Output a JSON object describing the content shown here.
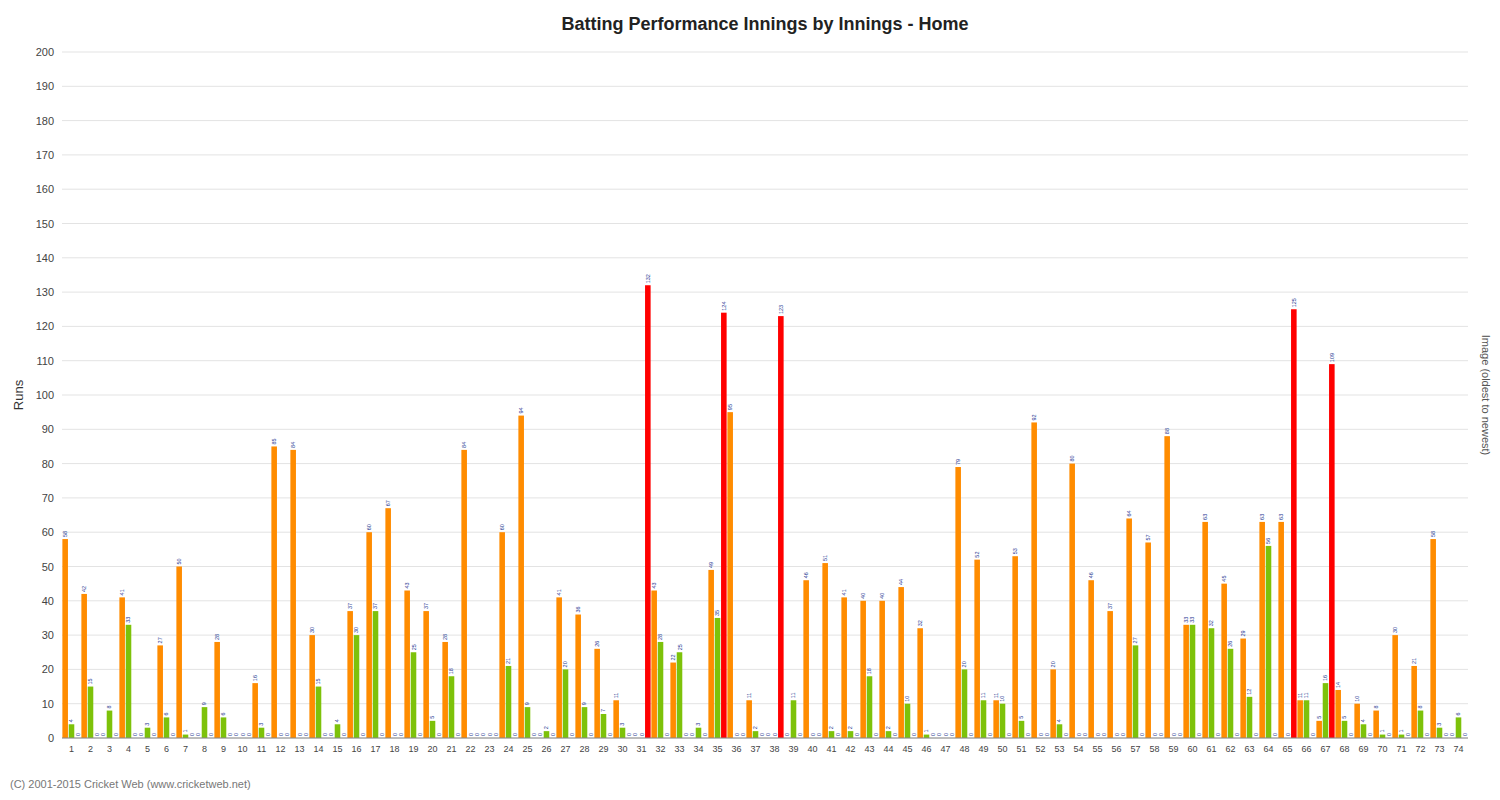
{
  "chart_data": {
    "type": "bar",
    "title": "Batting Performance Innings by Innings - Home",
    "ylabel": "Runs",
    "footer": "(C) 2001-2015 Cricket Web (www.cricketweb.net)",
    "watermark": "Image (oldest to newest)",
    "categories": [
      "1",
      "2",
      "3",
      "4",
      "5",
      "6",
      "7",
      "8",
      "9",
      "10",
      "11",
      "12",
      "13",
      "14",
      "15",
      "16",
      "17",
      "18",
      "19",
      "20",
      "21",
      "22",
      "23",
      "24",
      "25",
      "26",
      "27",
      "28",
      "29",
      "30",
      "31",
      "32",
      "33",
      "34",
      "35",
      "36",
      "37",
      "38",
      "39",
      "40",
      "41",
      "42",
      "43",
      "44",
      "45",
      "46",
      "47",
      "48",
      "49",
      "50",
      "51",
      "52",
      "53",
      "54",
      "55",
      "56",
      "57",
      "58",
      "59",
      "60",
      "61",
      "62",
      "63",
      "64",
      "65",
      "66",
      "67",
      "68",
      "69",
      "70",
      "71",
      "72",
      "73",
      "74"
    ],
    "series": [
      {
        "color": "#FF8C00",
        "values": [
          58,
          42,
          0,
          41,
          0,
          27,
          50,
          0,
          28,
          0,
          16,
          85,
          84,
          30,
          0,
          37,
          60,
          67,
          43,
          37,
          28,
          84,
          0,
          60,
          94,
          0,
          41,
          36,
          26,
          11,
          0,
          43,
          22,
          0,
          49,
          95,
          11,
          0,
          0,
          46,
          51,
          41,
          40,
          40,
          44,
          32,
          0,
          79,
          52,
          11,
          53,
          92,
          20,
          80,
          46,
          37,
          64,
          57,
          88,
          33,
          63,
          45,
          29,
          63,
          63,
          11,
          5,
          14,
          10,
          8,
          30,
          21,
          58,
          0
        ]
      },
      {
        "color": "#7DC20A",
        "values": [
          4,
          15,
          8,
          33,
          3,
          6,
          1,
          9,
          6,
          0,
          3,
          0,
          0,
          15,
          4,
          30,
          37,
          0,
          25,
          5,
          18,
          0,
          0,
          21,
          9,
          2,
          20,
          9,
          7,
          3,
          0,
          28,
          25,
          3,
          35,
          0,
          2,
          0,
          11,
          0,
          2,
          2,
          18,
          2,
          10,
          1,
          0,
          20,
          11,
          10,
          5,
          0,
          4,
          0,
          0,
          0,
          27,
          0,
          0,
          33,
          32,
          26,
          12,
          56,
          0,
          11,
          16,
          5,
          4,
          1,
          1,
          8,
          3,
          6
        ]
      },
      {
        "color": "#FF0000",
        "values": [
          0,
          0,
          0,
          0,
          0,
          0,
          0,
          0,
          0,
          0,
          0,
          0,
          0,
          0,
          0,
          0,
          0,
          0,
          0,
          0,
          0,
          0,
          0,
          0,
          0,
          0,
          0,
          0,
          0,
          0,
          132,
          0,
          0,
          0,
          124,
          0,
          0,
          123,
          0,
          0,
          0,
          0,
          0,
          0,
          0,
          0,
          0,
          0,
          0,
          0,
          0,
          0,
          0,
          0,
          0,
          0,
          0,
          0,
          0,
          0,
          0,
          0,
          0,
          0,
          125,
          0,
          109,
          0,
          0,
          0,
          0,
          0,
          0,
          0
        ]
      }
    ],
    "ylim": [
      0,
      200
    ],
    "yticks": [
      0,
      10,
      20,
      30,
      40,
      50,
      60,
      70,
      80,
      90,
      100,
      110,
      120,
      130,
      140,
      150,
      160,
      170,
      180,
      190,
      200
    ],
    "grid": true,
    "data_labels": true
  }
}
